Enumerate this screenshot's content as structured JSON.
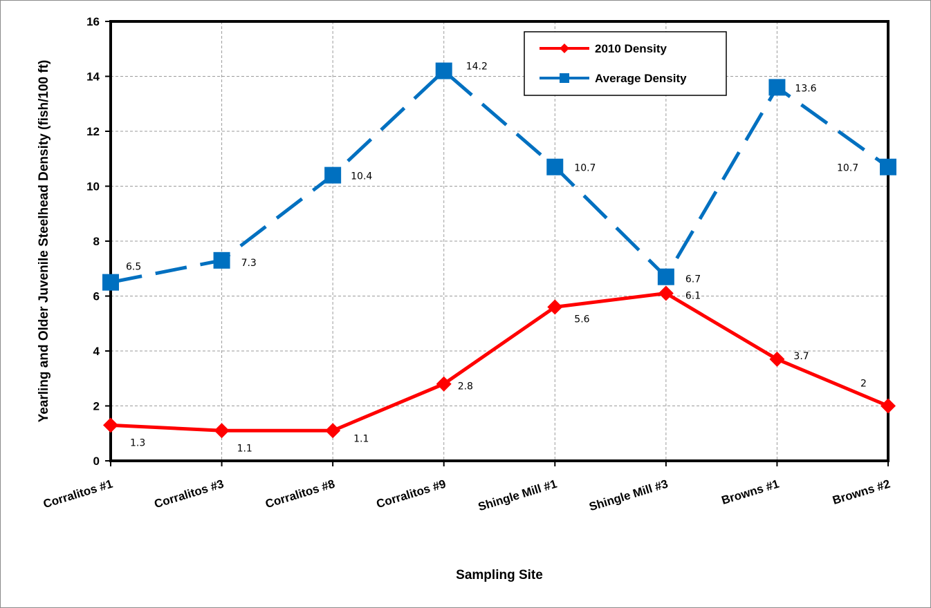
{
  "chart_data": {
    "type": "line",
    "xlabel": "Sampling Site",
    "ylabel": "Yearling and Older Juvenile Steelhead Density (fish/100 ft)",
    "categories": [
      "Corralitos #1",
      "Corralitos #3",
      "Corralitos #8",
      "Corralitos #9",
      "Shingle Mill #1",
      "Shingle Mill #3",
      "Browns #1",
      "Browns #2"
    ],
    "ylim": [
      0,
      16
    ],
    "yticks": [
      0,
      2,
      4,
      6,
      8,
      10,
      12,
      14,
      16
    ],
    "grid": true,
    "legend_position": "top-right",
    "series": [
      {
        "name": "2010 Density",
        "values": [
          1.3,
          1.1,
          1.1,
          2.8,
          5.6,
          6.1,
          3.7,
          2
        ],
        "labels": [
          "1.3",
          "1.1",
          "1.1",
          "2.8",
          "5.6",
          "6.1",
          "3.7",
          "2"
        ],
        "color": "#ff0000",
        "marker": "diamond",
        "line_style": "solid"
      },
      {
        "name": "Average Density",
        "values": [
          6.5,
          7.3,
          10.4,
          14.2,
          10.7,
          6.7,
          13.6,
          10.7
        ],
        "labels": [
          "6.5",
          "7.3",
          "10.4",
          "14.2",
          "10.7",
          "6.7",
          "13.6",
          "10.7"
        ],
        "color": "#0070c0",
        "marker": "square",
        "line_style": "dashed"
      }
    ]
  }
}
